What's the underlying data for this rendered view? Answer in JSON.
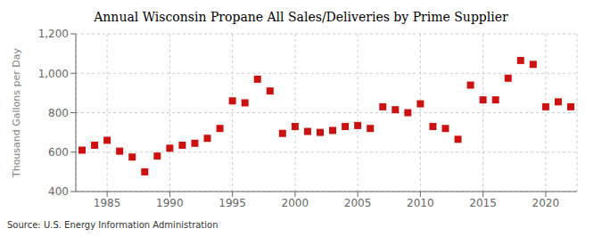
{
  "chart_data": {
    "type": "scatter",
    "title": "Annual Wisconsin Propane All Sales/Deliveries by Prime Supplier",
    "ylabel": "Thousand Gallons per Day",
    "annotations": [
      "Source: U.S. Energy Information Administration"
    ],
    "color": "#cc1111",
    "marker": "square",
    "grid": true,
    "xlim": [
      1982.5,
      2022.5
    ],
    "xticks": [
      1985,
      1990,
      1995,
      2000,
      2005,
      2010,
      2015,
      2020
    ],
    "ylim": [
      400,
      1200
    ],
    "yticks": [
      400,
      600,
      800,
      {
        "value": 1000,
        "label": "1,000"
      },
      {
        "value": 1200,
        "label": "1,200"
      }
    ],
    "x": [
      1983,
      1984,
      1985,
      1986,
      1987,
      1988,
      1989,
      1990,
      1991,
      1992,
      1993,
      1994,
      1995,
      1996,
      1997,
      1998,
      1999,
      2000,
      2001,
      2002,
      2003,
      2004,
      2005,
      2006,
      2007,
      2008,
      2009,
      2010,
      2011,
      2012,
      2013,
      2014,
      2015,
      2016,
      2017,
      2018,
      2019,
      2020,
      2021,
      2022
    ],
    "values": [
      610,
      635,
      660,
      605,
      575,
      500,
      580,
      620,
      635,
      645,
      670,
      720,
      860,
      850,
      970,
      910,
      695,
      730,
      705,
      700,
      710,
      730,
      735,
      720,
      830,
      815,
      800,
      845,
      730,
      720,
      665,
      940,
      865,
      865,
      975,
      1065,
      1045,
      830,
      855,
      830
    ]
  }
}
